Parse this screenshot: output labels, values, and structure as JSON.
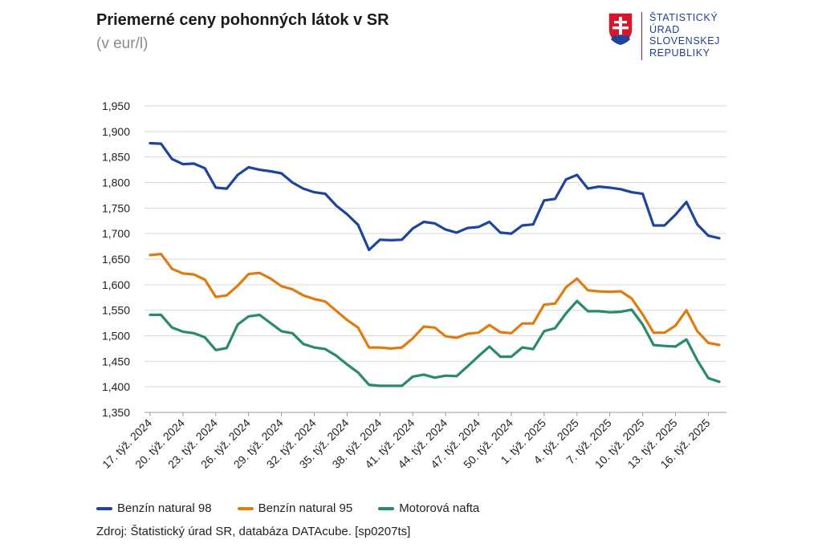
{
  "header": {
    "title": "Priemerné ceny pohonných látok v SR",
    "subtitle": "(v eur/l)"
  },
  "logo": {
    "lines": [
      "ŠTATISTICKÝ",
      "ÚRAD",
      "SLOVENSKEJ",
      "REPUBLIKY"
    ],
    "color": "#1f3f93",
    "accent": "#c8102e"
  },
  "source": "Zdroj: Štatistický úrad SR, databáza DATAcube. [sp0207ts]",
  "chart_data": {
    "type": "line",
    "title": "Priemerné ceny pohonných látok v SR",
    "ylabel": "v eur/l",
    "ylim": [
      1.35,
      1.95
    ],
    "yticks": [
      "1,350",
      "1,400",
      "1,450",
      "1,500",
      "1,550",
      "1,600",
      "1,650",
      "1,700",
      "1,750",
      "1,800",
      "1,850",
      "1,900",
      "1,950"
    ],
    "grid": true,
    "legend_position": "bottom",
    "xtick_labels": [
      "17. týž. 2024",
      "20. týž. 2024",
      "23. týž. 2024",
      "26. týž. 2024",
      "29. týž. 2024",
      "32. týž. 2024",
      "35. týž. 2024",
      "38. týž. 2024",
      "41. týž. 2024",
      "44. týž. 2024",
      "47. týž. 2024",
      "50. týž. 2024",
      "1. týž. 2025",
      "4. týž. 2025",
      "7. týž. 2025",
      "10. týž. 2025",
      "13. týž. 2025",
      "16. týž. 2025"
    ],
    "series": [
      {
        "name": "Benzín natural 98",
        "color": "#1f449c",
        "values": [
          1.877,
          1.876,
          1.846,
          1.836,
          1.837,
          1.828,
          1.79,
          1.788,
          1.815,
          1.83,
          1.825,
          1.822,
          1.818,
          1.8,
          1.788,
          1.781,
          1.778,
          1.755,
          1.738,
          1.717,
          1.668,
          1.688,
          1.687,
          1.688,
          1.71,
          1.723,
          1.72,
          1.708,
          1.702,
          1.711,
          1.713,
          1.723,
          1.702,
          1.7,
          1.716,
          1.718,
          1.765,
          1.768,
          1.806,
          1.815,
          1.788,
          1.792,
          1.79,
          1.787,
          1.781,
          1.778,
          1.716,
          1.716,
          1.737,
          1.762,
          1.718,
          1.696,
          1.691
        ]
      },
      {
        "name": "Benzín natural 95",
        "color": "#e07b10",
        "values": [
          1.658,
          1.66,
          1.631,
          1.622,
          1.62,
          1.61,
          1.576,
          1.579,
          1.598,
          1.621,
          1.623,
          1.612,
          1.597,
          1.591,
          1.579,
          1.572,
          1.567,
          1.549,
          1.531,
          1.516,
          1.477,
          1.477,
          1.475,
          1.477,
          1.495,
          1.518,
          1.516,
          1.499,
          1.496,
          1.504,
          1.506,
          1.521,
          1.507,
          1.505,
          1.524,
          1.524,
          1.561,
          1.563,
          1.595,
          1.612,
          1.589,
          1.587,
          1.586,
          1.587,
          1.573,
          1.542,
          1.506,
          1.506,
          1.52,
          1.55,
          1.509,
          1.486,
          1.482
        ]
      },
      {
        "name": "Motorová nafta",
        "color": "#2a8a6e",
        "values": [
          1.541,
          1.541,
          1.516,
          1.508,
          1.505,
          1.497,
          1.472,
          1.476,
          1.522,
          1.538,
          1.541,
          1.525,
          1.509,
          1.505,
          1.484,
          1.477,
          1.474,
          1.461,
          1.444,
          1.428,
          1.404,
          1.402,
          1.402,
          1.402,
          1.42,
          1.424,
          1.418,
          1.422,
          1.421,
          1.44,
          1.46,
          1.479,
          1.459,
          1.459,
          1.477,
          1.474,
          1.509,
          1.515,
          1.544,
          1.568,
          1.548,
          1.548,
          1.546,
          1.547,
          1.551,
          1.522,
          1.482,
          1.48,
          1.479,
          1.493,
          1.452,
          1.417,
          1.41
        ]
      }
    ]
  }
}
